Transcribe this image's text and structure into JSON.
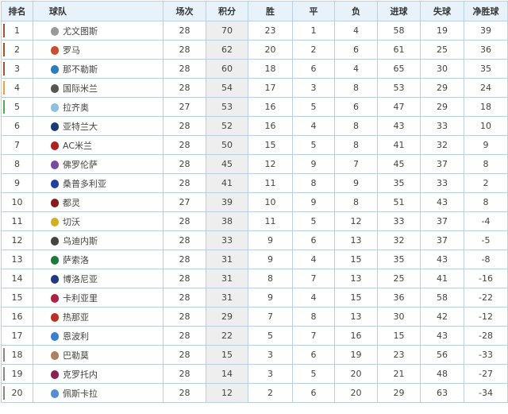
{
  "headers": [
    "排名",
    "球队",
    "场次",
    "积分",
    "胜",
    "平",
    "负",
    "进球",
    "失球",
    "净胜球"
  ],
  "zone_colors": {
    "champions": "#a0522d",
    "champions_playoff": "#f0a040",
    "europa": "#4cae4c",
    "relegation": "#888888"
  },
  "rows": [
    {
      "rank": "1",
      "team": "尤文图斯",
      "logo": "#9a9a9a",
      "zone": "champions",
      "played": "28",
      "points": "70",
      "w": "23",
      "d": "1",
      "l": "4",
      "gf": "58",
      "ga": "19",
      "gd": "39"
    },
    {
      "rank": "2",
      "team": "罗马",
      "logo": "#c8502a",
      "zone": "champions",
      "played": "28",
      "points": "62",
      "w": "20",
      "d": "2",
      "l": "6",
      "gf": "61",
      "ga": "25",
      "gd": "36"
    },
    {
      "rank": "3",
      "team": "那不勒斯",
      "logo": "#2a7ec0",
      "zone": "champions",
      "played": "28",
      "points": "60",
      "w": "18",
      "d": "6",
      "l": "4",
      "gf": "65",
      "ga": "30",
      "gd": "35"
    },
    {
      "rank": "4",
      "team": "国际米兰",
      "logo": "#555555",
      "zone": "champions_playoff",
      "played": "28",
      "points": "54",
      "w": "17",
      "d": "3",
      "l": "8",
      "gf": "53",
      "ga": "29",
      "gd": "24"
    },
    {
      "rank": "5",
      "team": "拉齐奥",
      "logo": "#8cc0e0",
      "zone": "europa",
      "played": "27",
      "points": "53",
      "w": "16",
      "d": "5",
      "l": "6",
      "gf": "47",
      "ga": "29",
      "gd": "18"
    },
    {
      "rank": "6",
      "team": "亚特兰大",
      "logo": "#1a3a7a",
      "zone": "",
      "played": "28",
      "points": "52",
      "w": "16",
      "d": "4",
      "l": "8",
      "gf": "43",
      "ga": "33",
      "gd": "10"
    },
    {
      "rank": "7",
      "team": "AC米兰",
      "logo": "#b02020",
      "zone": "",
      "played": "28",
      "points": "50",
      "w": "15",
      "d": "5",
      "l": "8",
      "gf": "41",
      "ga": "32",
      "gd": "9"
    },
    {
      "rank": "8",
      "team": "佛罗伦萨",
      "logo": "#7a4aa0",
      "zone": "",
      "played": "28",
      "points": "45",
      "w": "12",
      "d": "9",
      "l": "7",
      "gf": "45",
      "ga": "37",
      "gd": "8"
    },
    {
      "rank": "9",
      "team": "桑普多利亚",
      "logo": "#2040a0",
      "zone": "",
      "played": "28",
      "points": "41",
      "w": "11",
      "d": "8",
      "l": "9",
      "gf": "35",
      "ga": "33",
      "gd": "2"
    },
    {
      "rank": "10",
      "team": "都灵",
      "logo": "#8a1a1a",
      "zone": "",
      "played": "27",
      "points": "39",
      "w": "10",
      "d": "9",
      "l": "8",
      "gf": "51",
      "ga": "43",
      "gd": "8"
    },
    {
      "rank": "11",
      "team": "切沃",
      "logo": "#d0b020",
      "zone": "",
      "played": "28",
      "points": "38",
      "w": "11",
      "d": "5",
      "l": "12",
      "gf": "33",
      "ga": "37",
      "gd": "-4"
    },
    {
      "rank": "12",
      "team": "乌迪内斯",
      "logo": "#444444",
      "zone": "",
      "played": "28",
      "points": "33",
      "w": "9",
      "d": "6",
      "l": "13",
      "gf": "32",
      "ga": "37",
      "gd": "-5"
    },
    {
      "rank": "13",
      "team": "萨索洛",
      "logo": "#1a7a3a",
      "zone": "",
      "played": "28",
      "points": "31",
      "w": "9",
      "d": "4",
      "l": "15",
      "gf": "35",
      "ga": "43",
      "gd": "-8"
    },
    {
      "rank": "14",
      "team": "博洛尼亚",
      "logo": "#203a80",
      "zone": "",
      "played": "28",
      "points": "31",
      "w": "8",
      "d": "7",
      "l": "13",
      "gf": "25",
      "ga": "41",
      "gd": "-16"
    },
    {
      "rank": "15",
      "team": "卡利亚里",
      "logo": "#b02040",
      "zone": "",
      "played": "28",
      "points": "31",
      "w": "9",
      "d": "4",
      "l": "15",
      "gf": "36",
      "ga": "58",
      "gd": "-22"
    },
    {
      "rank": "16",
      "team": "热那亚",
      "logo": "#c03020",
      "zone": "",
      "played": "28",
      "points": "29",
      "w": "7",
      "d": "8",
      "l": "13",
      "gf": "30",
      "ga": "42",
      "gd": "-12"
    },
    {
      "rank": "17",
      "team": "恩波利",
      "logo": "#3a80d0",
      "zone": "",
      "played": "28",
      "points": "22",
      "w": "5",
      "d": "7",
      "l": "16",
      "gf": "15",
      "ga": "43",
      "gd": "-28"
    },
    {
      "rank": "18",
      "team": "巴勒莫",
      "logo": "#b08060",
      "zone": "relegation",
      "played": "28",
      "points": "15",
      "w": "3",
      "d": "6",
      "l": "19",
      "gf": "23",
      "ga": "56",
      "gd": "-33"
    },
    {
      "rank": "19",
      "team": "克罗托内",
      "logo": "#8a2050",
      "zone": "relegation",
      "played": "28",
      "points": "14",
      "w": "3",
      "d": "5",
      "l": "20",
      "gf": "21",
      "ga": "48",
      "gd": "-27"
    },
    {
      "rank": "20",
      "team": "佩斯卡拉",
      "logo": "#5090d0",
      "zone": "relegation",
      "played": "28",
      "points": "12",
      "w": "2",
      "d": "6",
      "l": "20",
      "gf": "29",
      "ga": "63",
      "gd": "-34"
    }
  ]
}
